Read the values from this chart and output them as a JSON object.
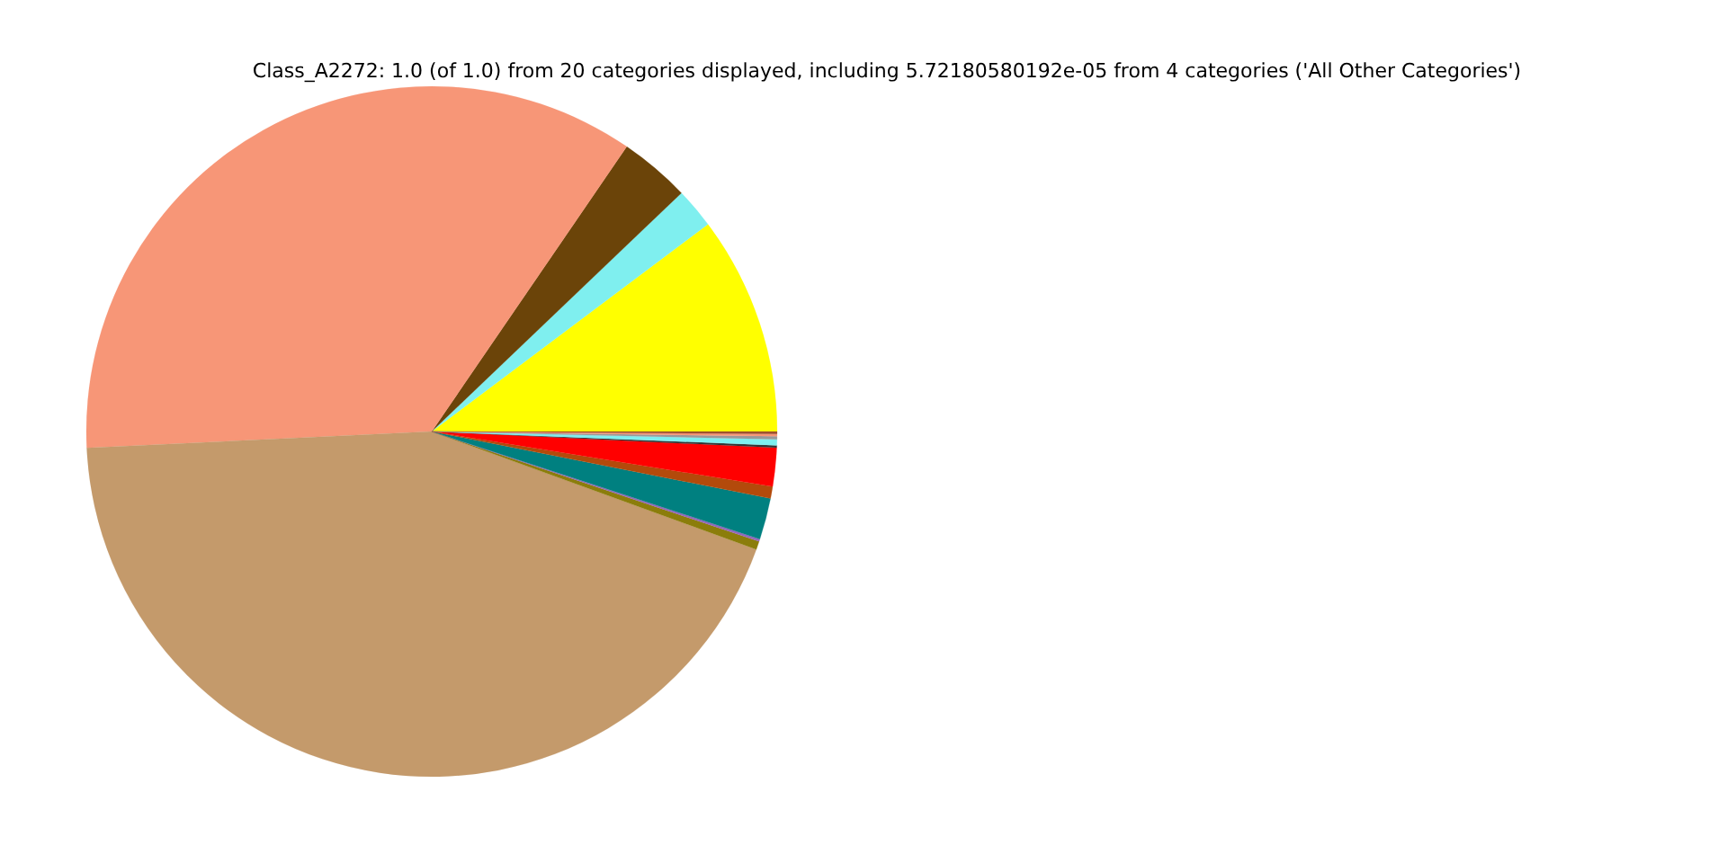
{
  "chart_data": {
    "type": "pie",
    "title": "Class_A2272: 1.0 (of 1.0) from 20 categories displayed, including 5.72180580192e-05 from 4 categories ('All Other Categories')",
    "categories": [
      null,
      null,
      null,
      null,
      null,
      null,
      null,
      null,
      null,
      null,
      null,
      null,
      null,
      null,
      null
    ],
    "values": [
      10.25,
      1.89,
      3.31,
      35.31,
      43.69,
      0.39,
      0.11,
      1.94,
      0.56,
      1.8,
      0.11,
      0.28,
      0.14,
      0.11,
      0.11
    ],
    "colors": [
      "#ffff00",
      "#7fefef",
      "#6b4409",
      "#f79677",
      "#c49a6b",
      "#8b7d0b",
      "#9467bd",
      "#008080",
      "#b34a0b",
      "#ff0000",
      "#333333",
      "#7fefef",
      "#999999",
      "#f79677",
      "#a0522d"
    ]
  }
}
